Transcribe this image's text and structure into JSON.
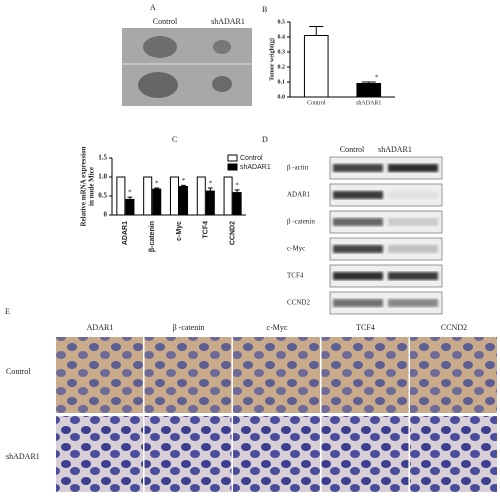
{
  "panel_a": {
    "panel_label": "A",
    "columns": [
      "Control",
      "shADAR1"
    ]
  },
  "chart_data": [
    {
      "type": "bar",
      "panel_label": "B",
      "ylabel": [
        "Tumor weight(g)"
      ],
      "categories": [
        "Control",
        "shADAR1"
      ],
      "values": [
        0.41,
        0.09
      ],
      "errors": [
        0.06,
        0.01
      ],
      "colors": [
        "#ffffff",
        "#000000"
      ],
      "ylim": [
        0,
        0.5
      ],
      "yticks": [
        {
          "value": 0,
          "label": "0.0"
        },
        0.1,
        0.2,
        0.3,
        0.4,
        0.5
      ],
      "asterisk": "*"
    },
    {
      "type": "bar",
      "panel_label": "C",
      "ylabel": [
        "Relative mRNA expression",
        "in nude Mice"
      ],
      "categories": [
        "ADAR1",
        "β-catenin",
        "c-Myc",
        "TCF4",
        "CCND2"
      ],
      "series": [
        {
          "name": "Control",
          "color": "#ffffff",
          "values": [
            1,
            1,
            1,
            1,
            1
          ],
          "errors": [
            0,
            0,
            0,
            0,
            0
          ]
        },
        {
          "name": "shADAR1",
          "color": "#000000",
          "values": [
            0.41,
            0.68,
            0.75,
            0.63,
            0.59
          ],
          "errors": [
            0.06,
            0.03,
            0.03,
            0.08,
            0.07
          ]
        }
      ],
      "ylim": [
        0,
        1.5
      ],
      "yticks": [
        0,
        0.5,
        {
          "value": 1,
          "label": "1.0"
        },
        1.5
      ],
      "asterisk": "*",
      "legend": "top-right"
    }
  ],
  "panel_d": {
    "panel_label": "D",
    "columns": [
      "Control",
      "shADAR1"
    ],
    "rows": [
      "β -actin",
      "ADAR1",
      "β -catenin",
      "c-Myc",
      "TCF4",
      "CCND2"
    ]
  },
  "panel_e": {
    "panel_label": "E",
    "columns": [
      "ADAR1",
      "β -catenin",
      "c-Myc",
      "TCF4",
      "CCND2"
    ],
    "rows": [
      "Control",
      "shADAR1"
    ]
  }
}
